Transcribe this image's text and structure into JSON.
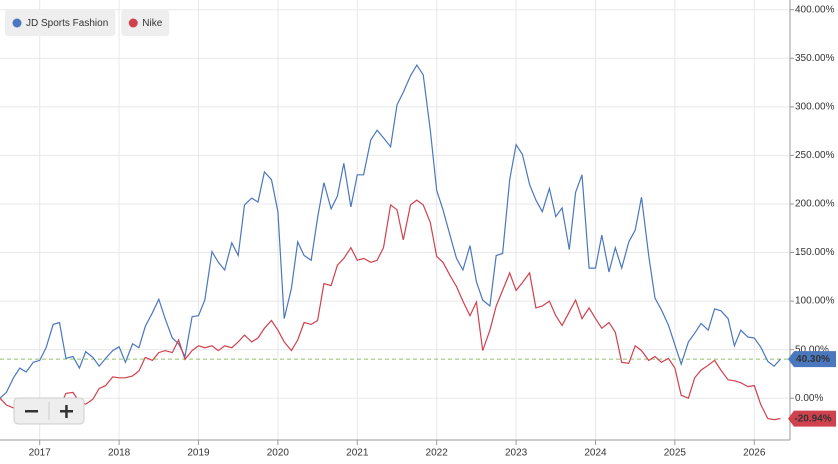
{
  "chart_data": {
    "type": "line",
    "x": [
      2016.5,
      2016.58,
      2016.67,
      2016.75,
      2016.83,
      2016.92,
      2017.0,
      2017.08,
      2017.17,
      2017.25,
      2017.33,
      2017.42,
      2017.5,
      2017.58,
      2017.67,
      2017.75,
      2017.83,
      2017.92,
      2018.0,
      2018.08,
      2018.17,
      2018.25,
      2018.33,
      2018.42,
      2018.5,
      2018.58,
      2018.67,
      2018.75,
      2018.83,
      2018.92,
      2019.0,
      2019.08,
      2019.17,
      2019.25,
      2019.33,
      2019.42,
      2019.5,
      2019.58,
      2019.67,
      2019.75,
      2019.83,
      2019.92,
      2020.0,
      2020.08,
      2020.17,
      2020.25,
      2020.33,
      2020.42,
      2020.5,
      2020.58,
      2020.67,
      2020.75,
      2020.83,
      2020.92,
      2021.0,
      2021.08,
      2021.17,
      2021.25,
      2021.33,
      2021.42,
      2021.5,
      2021.58,
      2021.67,
      2021.75,
      2021.83,
      2021.92,
      2022.0,
      2022.08,
      2022.17,
      2022.25,
      2022.33,
      2022.42,
      2022.5,
      2022.58,
      2022.67,
      2022.75,
      2022.83,
      2022.92,
      2023.0,
      2023.08,
      2023.17,
      2023.25,
      2023.33,
      2023.42,
      2023.5,
      2023.58,
      2023.67,
      2023.75,
      2023.83,
      2023.92,
      2024.0,
      2024.08,
      2024.17,
      2024.25,
      2024.33,
      2024.42,
      2024.5,
      2024.58,
      2024.67,
      2024.75,
      2024.83,
      2024.92,
      2025.0,
      2025.08,
      2025.17,
      2025.25,
      2025.33,
      2025.42,
      2025.5,
      2025.58,
      2025.67,
      2025.75,
      2025.83,
      2025.92,
      2026.0,
      2026.08,
      2026.17,
      2026.25,
      2026.33
    ],
    "series": [
      {
        "name": "JD Sports Fashion",
        "color": "#4a77be",
        "last_label": "40.30%",
        "values": [
          0,
          6,
          21,
          31,
          27,
          37,
          39,
          52,
          76,
          78,
          41,
          43,
          31,
          48,
          42,
          33,
          41,
          49,
          53,
          37,
          56,
          52,
          74,
          88,
          102,
          82,
          62,
          56,
          43,
          84,
          85,
          101,
          151,
          140,
          132,
          160,
          147,
          199,
          206,
          202,
          233,
          225,
          192,
          82,
          113,
          161,
          147,
          142,
          186,
          222,
          195,
          208,
          242,
          197,
          230,
          230,
          266,
          276,
          268,
          259,
          302,
          315,
          332,
          343,
          333,
          276,
          214,
          194,
          167,
          144,
          132,
          157,
          120,
          101,
          95,
          147,
          149,
          225,
          261,
          251,
          220,
          204,
          192,
          216,
          187,
          196,
          153,
          212,
          230,
          134,
          134,
          168,
          130,
          155,
          134,
          161,
          173,
          207,
          147,
          103,
          91,
          75,
          55,
          35,
          58,
          67,
          77,
          70,
          92,
          90,
          82,
          54,
          70,
          63,
          62,
          53,
          38,
          33,
          40.3
        ]
      },
      {
        "name": "Nike",
        "color": "#d0414e",
        "last_label": "-20.94%",
        "values": [
          0,
          -7,
          -10,
          -12,
          -8,
          -5,
          -5,
          -6,
          -5,
          -10,
          5,
          6,
          -4,
          -6,
          -1,
          10,
          13,
          22,
          21,
          21,
          23,
          28,
          42,
          39,
          47,
          49,
          47,
          60,
          40,
          49,
          54,
          52,
          54,
          49,
          54,
          52,
          58,
          65,
          58,
          62,
          72,
          80,
          70,
          58,
          49,
          60,
          78,
          76,
          80,
          118,
          116,
          137,
          144,
          155,
          142,
          144,
          140,
          142,
          155,
          199,
          194,
          163,
          199,
          204,
          199,
          181,
          146,
          140,
          126,
          115,
          100,
          85,
          99,
          49,
          70,
          95,
          111,
          129,
          111,
          119,
          129,
          93,
          95,
          100,
          85,
          75,
          89,
          101,
          82,
          93,
          82,
          72,
          78,
          68,
          37,
          36,
          54,
          49,
          39,
          43,
          37,
          41,
          31,
          3,
          0,
          21,
          29,
          34,
          39,
          29,
          19,
          18,
          16,
          12,
          13,
          -6,
          -21,
          -22,
          -20.94
        ]
      }
    ],
    "xlim": [
      2016.5,
      2026.45
    ],
    "xticks": [
      2017,
      2018,
      2019,
      2020,
      2021,
      2022,
      2023,
      2024,
      2025,
      2026
    ],
    "ylim": [
      -43,
      410
    ],
    "yticks": [
      {
        "value": 0,
        "label": "0.00%"
      },
      {
        "value": 50,
        "label": "50.00%"
      },
      {
        "value": 100,
        "label": "100.00%"
      },
      {
        "value": 150,
        "label": "150.00%"
      },
      {
        "value": 200,
        "label": "200.00%"
      },
      {
        "value": 250,
        "label": "250.00%"
      },
      {
        "value": 300,
        "label": "300.00%"
      },
      {
        "value": 350,
        "label": "350.00%"
      },
      {
        "value": 400,
        "label": "400.00%"
      }
    ],
    "grid": true
  }
}
